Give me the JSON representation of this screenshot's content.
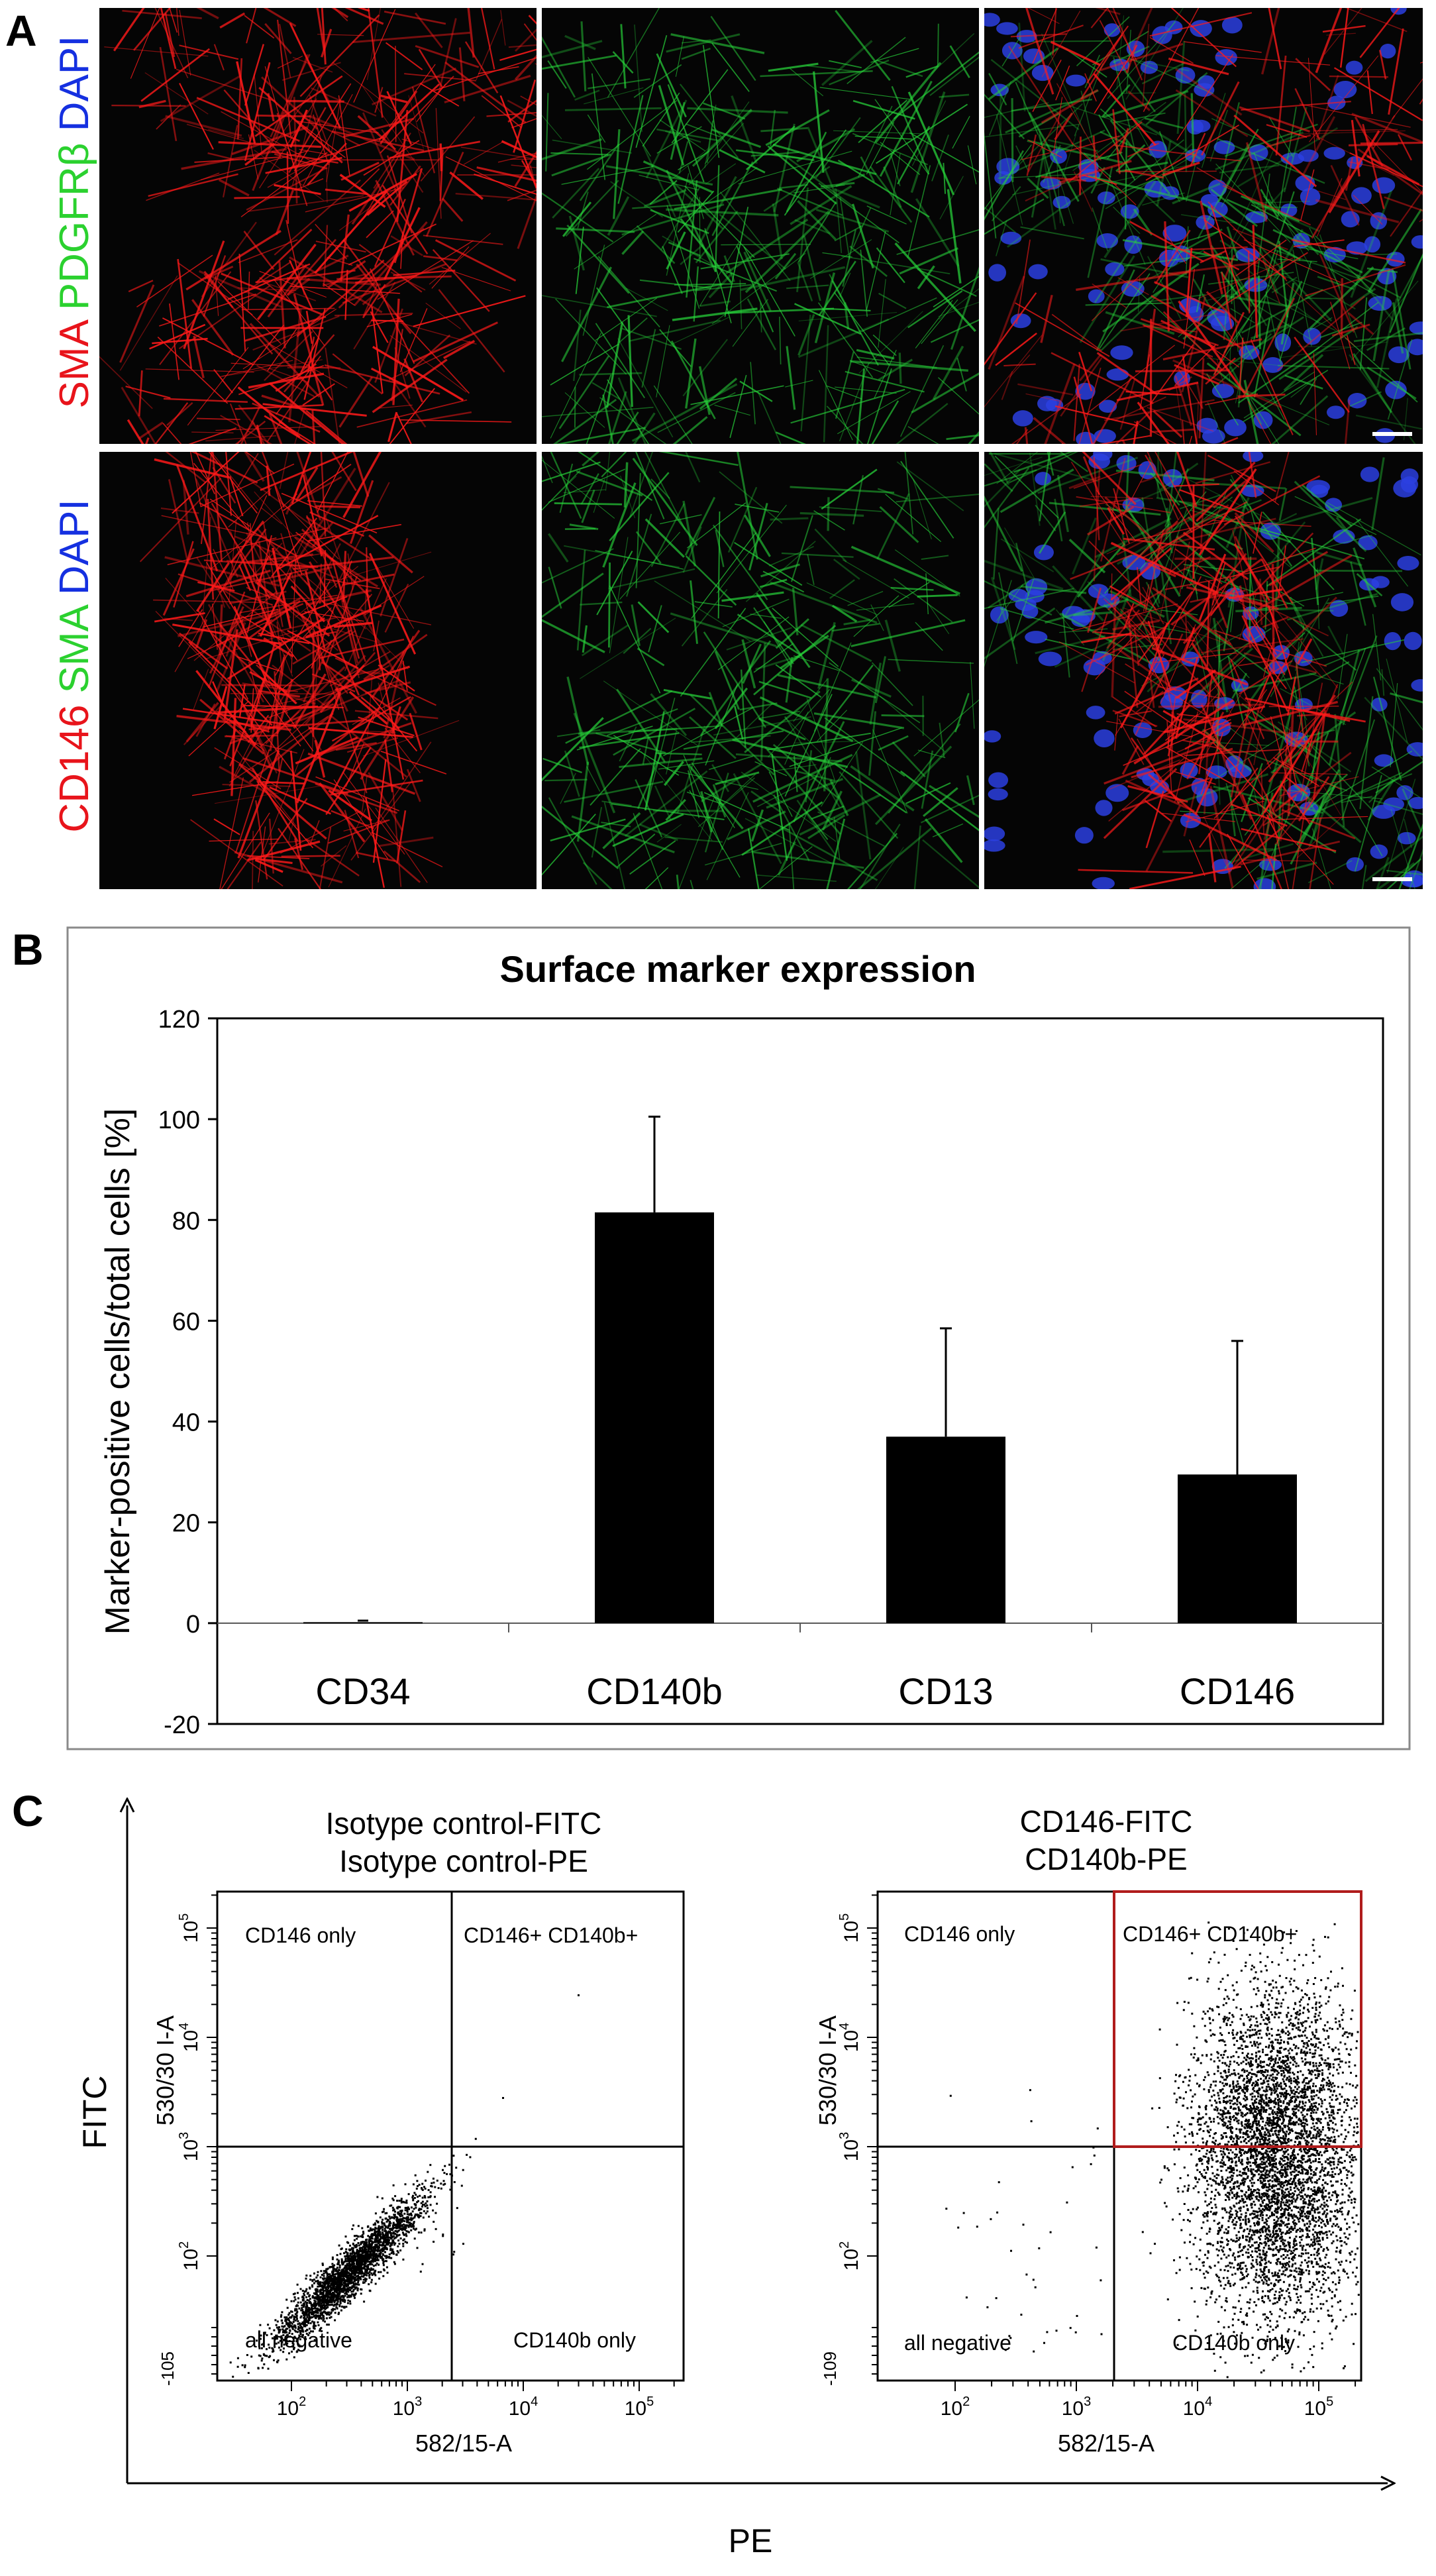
{
  "panels": {
    "a": "A",
    "b": "B",
    "c": "C"
  },
  "micrograph_rows": [
    {
      "labels": [
        {
          "text": "SMA",
          "color": "#e8141b"
        },
        {
          "text": "PDGFRβ",
          "color": "#2bd12f"
        },
        {
          "text": "DAPI",
          "color": "#1530e0"
        }
      ]
    },
    {
      "labels": [
        {
          "text": "CD146",
          "color": "#e8141b"
        },
        {
          "text": "SMA",
          "color": "#2bd12f"
        },
        {
          "text": "DAPI",
          "color": "#1530e0"
        }
      ]
    }
  ],
  "chart_data": {
    "type": "bar",
    "title": "Surface marker expression",
    "ylabel": "Marker-positive cells/total cells [%]",
    "xlabel": "",
    "categories": [
      "CD34",
      "CD140b",
      "CD13",
      "CD146"
    ],
    "values": [
      0.2,
      81.5,
      37,
      29.5
    ],
    "error_bars": [
      0.3,
      19,
      21.5,
      26.5
    ],
    "ylim": [
      -20,
      120
    ],
    "yticks": [
      -20,
      0,
      20,
      40,
      60,
      80,
      100,
      120
    ],
    "grid": false,
    "bar_color": "#000000"
  },
  "flow": {
    "x_axis_label": "PE",
    "y_axis_label": "FITC",
    "plots": [
      {
        "title_lines": [
          "Isotype control-FITC",
          "Isotype control-PE"
        ],
        "quadrants": {
          "ul": "CD146 only",
          "ur": "CD146+ CD140b+",
          "ll": "all negative",
          "lr": "CD140b only"
        },
        "xlabel": "582/15-A",
        "ylabel": "530/30 I-A",
        "ymin_label": "-105",
        "highlight_color": ""
      },
      {
        "title_lines": [
          "CD146-FITC",
          "CD140b-PE"
        ],
        "quadrants": {
          "ul": "CD146 only",
          "ur": "CD146+ CD140b+",
          "ll": "all negative",
          "lr": "CD140b only"
        },
        "xlabel": "582/15-A",
        "ylabel": "530/30 I-A",
        "ymin_label": "-109",
        "highlight_color": "#b01c1c"
      }
    ]
  }
}
